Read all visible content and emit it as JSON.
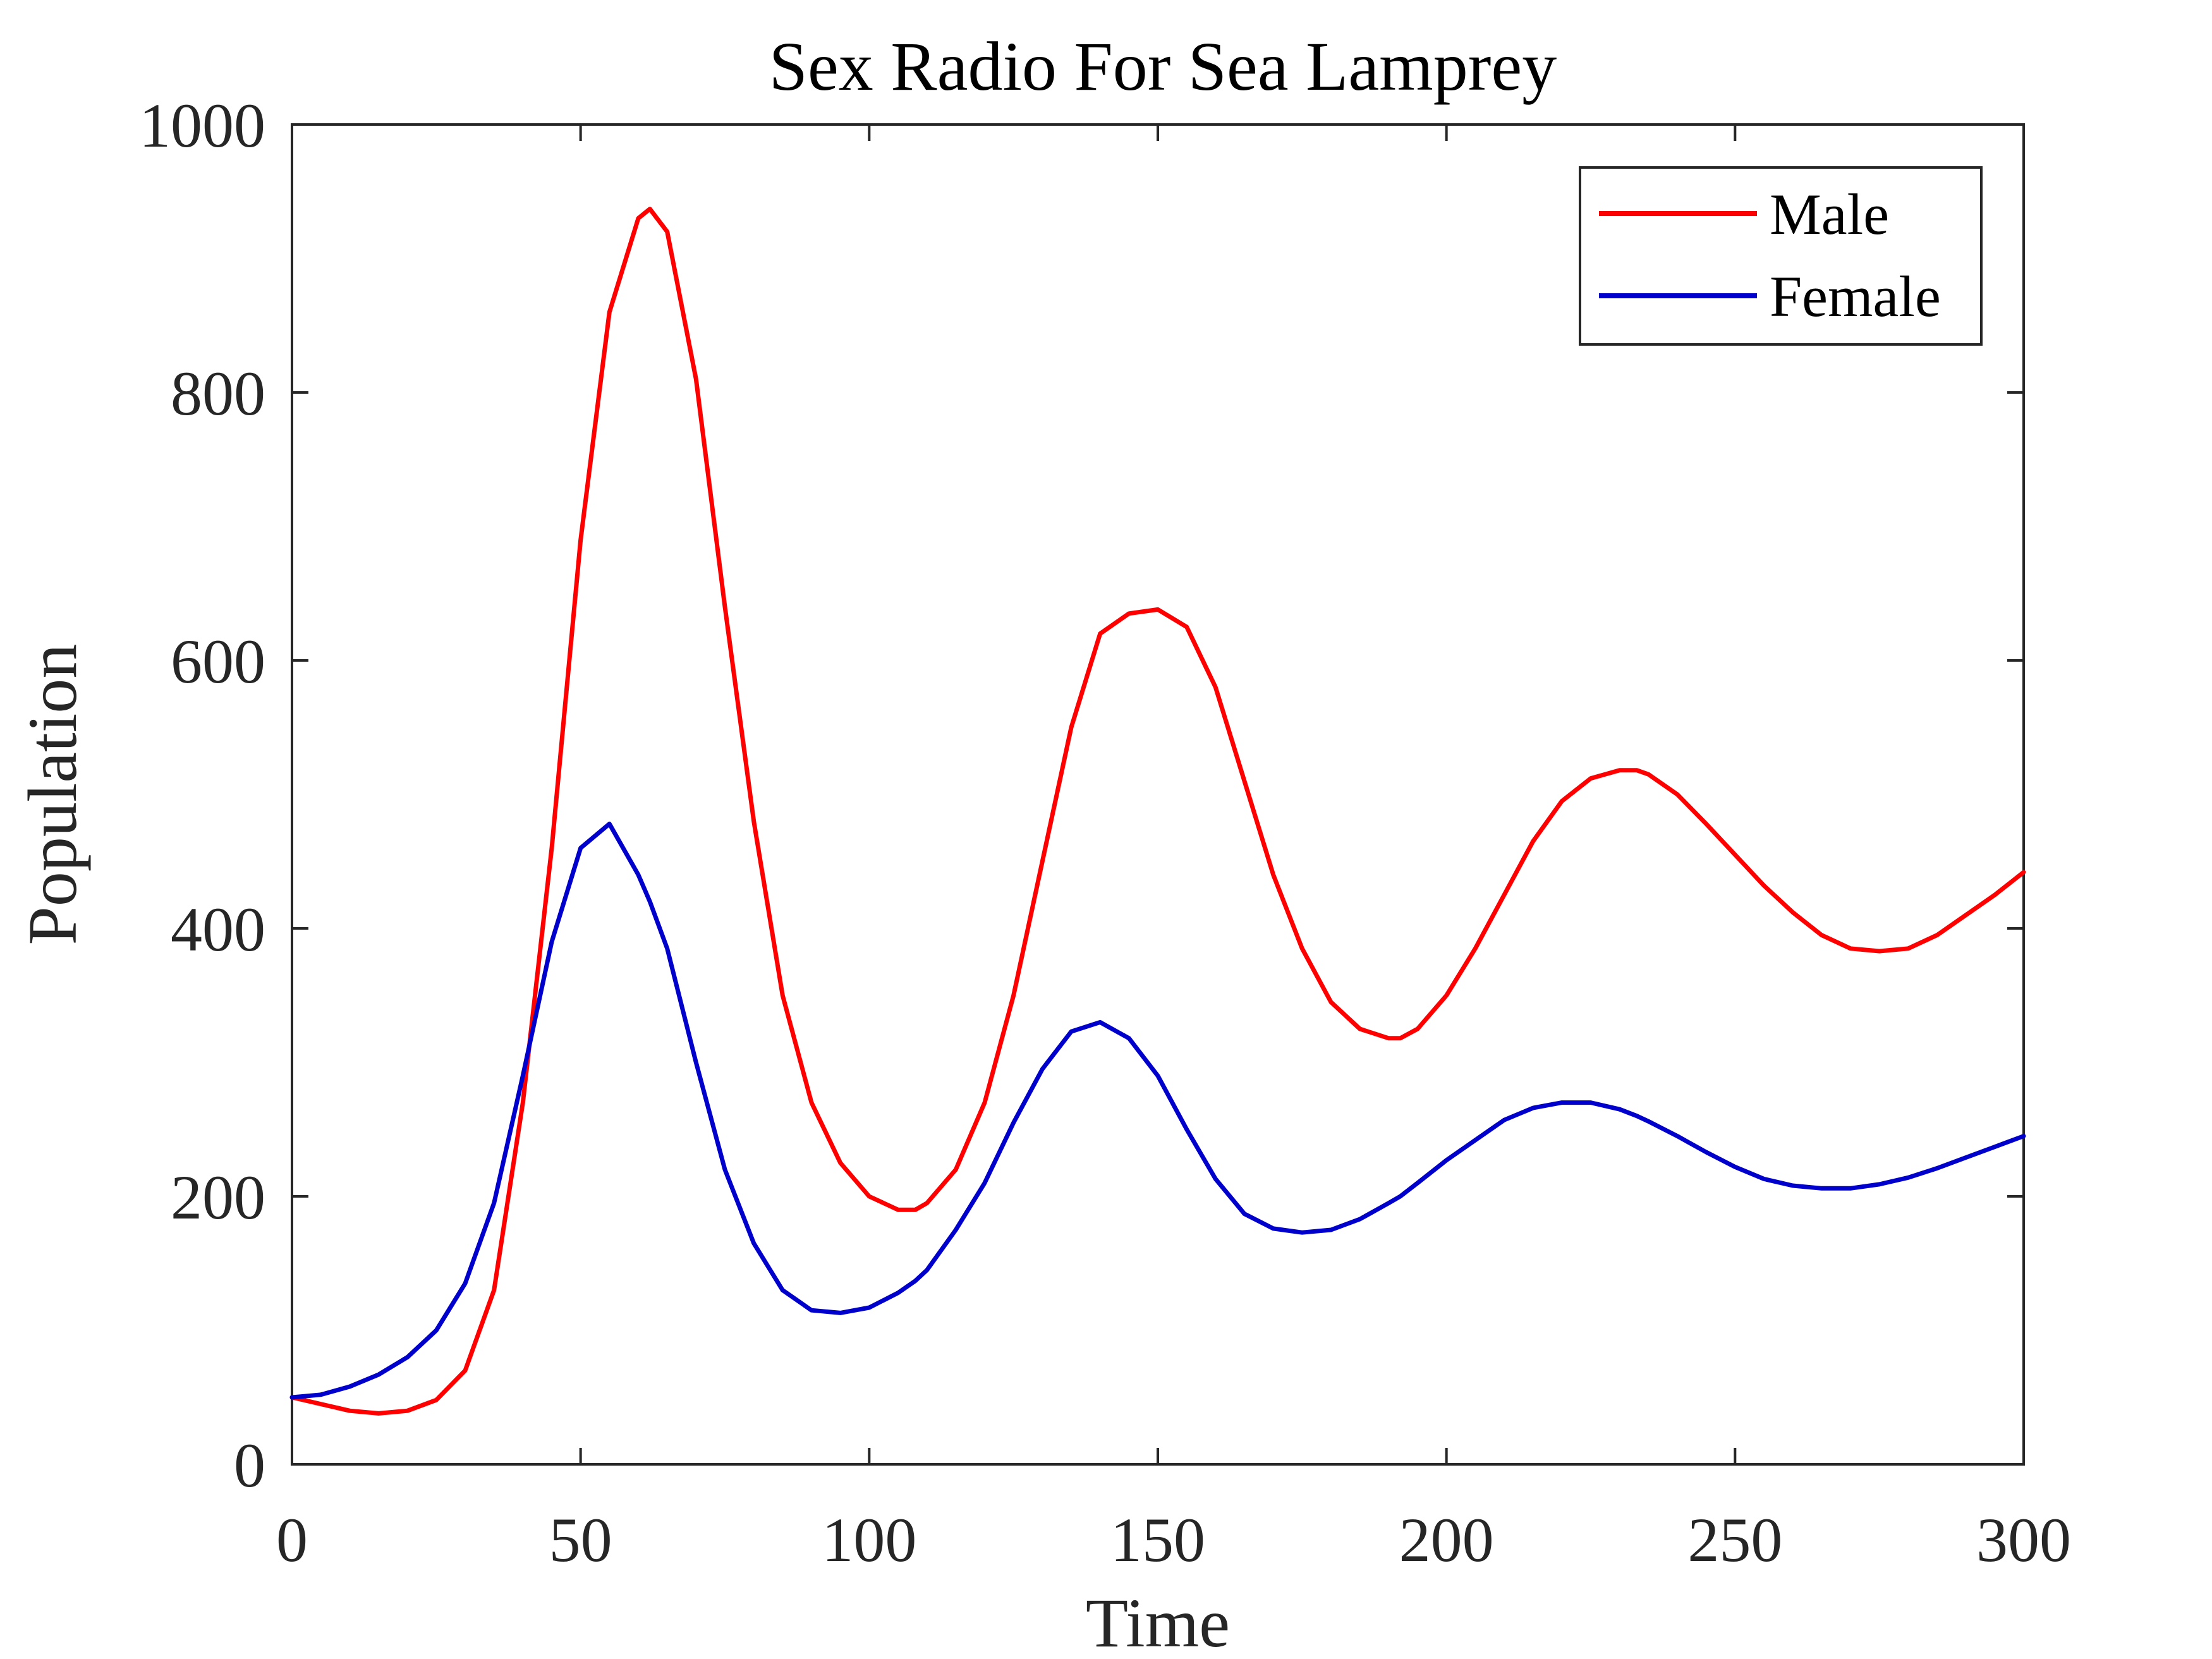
{
  "chart_data": {
    "type": "line",
    "title": "Sex Radio For Sea Lamprey",
    "xlabel": "Time",
    "ylabel": "Population",
    "xlim": [
      0,
      300
    ],
    "ylim": [
      0,
      1000
    ],
    "x_ticks": [
      "0",
      "50",
      "100",
      "150",
      "200",
      "250",
      "300"
    ],
    "y_ticks": [
      "0",
      "200",
      "400",
      "600",
      "800",
      "1000"
    ],
    "grid": false,
    "legend_position": "top-right",
    "x": [
      0,
      5,
      10,
      15,
      20,
      25,
      30,
      35,
      40,
      45,
      50,
      55,
      60,
      62,
      65,
      70,
      75,
      80,
      85,
      90,
      95,
      100,
      105,
      108,
      110,
      115,
      120,
      125,
      130,
      135,
      140,
      145,
      150,
      155,
      160,
      165,
      170,
      175,
      180,
      185,
      190,
      192,
      195,
      200,
      205,
      210,
      215,
      220,
      225,
      230,
      233,
      235,
      240,
      245,
      250,
      255,
      260,
      265,
      270,
      275,
      280,
      285,
      290,
      295,
      300
    ],
    "series": [
      {
        "name": "Male",
        "color": "#ff0000",
        "values": [
          50,
          45,
          40,
          38,
          40,
          48,
          70,
          130,
          270,
          460,
          690,
          860,
          930,
          937,
          920,
          810,
          640,
          480,
          350,
          270,
          225,
          200,
          190,
          190,
          195,
          220,
          270,
          350,
          450,
          550,
          620,
          635,
          638,
          625,
          580,
          510,
          440,
          385,
          345,
          325,
          318,
          318,
          325,
          350,
          385,
          425,
          465,
          495,
          512,
          518,
          518,
          515,
          500,
          478,
          455,
          432,
          412,
          395,
          385,
          383,
          385,
          395,
          410,
          425,
          442
        ]
      },
      {
        "name": "Female",
        "color": "#0000cd",
        "values": [
          50,
          52,
          58,
          67,
          80,
          100,
          135,
          195,
          290,
          390,
          460,
          478,
          440,
          420,
          385,
          300,
          220,
          165,
          130,
          115,
          113,
          117,
          128,
          137,
          145,
          175,
          210,
          255,
          295,
          323,
          330,
          318,
          290,
          250,
          213,
          187,
          176,
          173,
          175,
          183,
          195,
          200,
          210,
          227,
          242,
          257,
          266,
          270,
          270,
          265,
          260,
          256,
          245,
          233,
          222,
          213,
          208,
          206,
          206,
          209,
          214,
          221,
          229,
          237,
          245
        ]
      }
    ]
  }
}
